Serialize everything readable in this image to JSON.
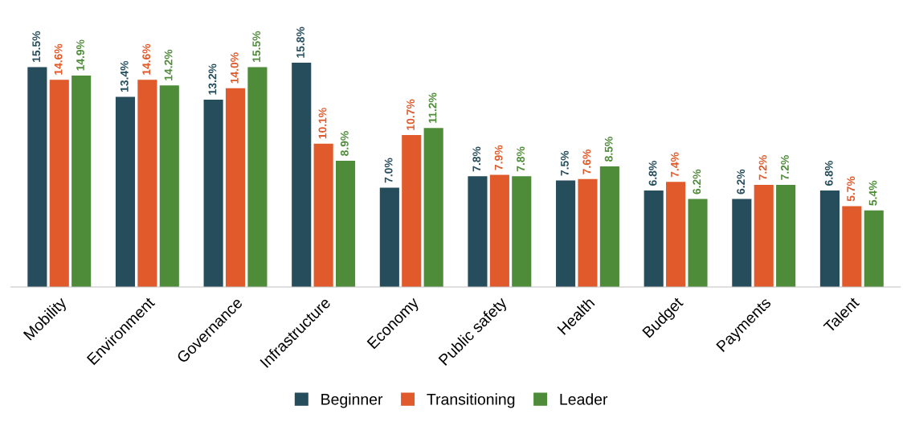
{
  "chart_data": {
    "type": "bar",
    "categories": [
      "Mobility",
      "Environment",
      "Governance",
      "Infrastructure",
      "Economy",
      "Public safety",
      "Health",
      "Budget",
      "Payments",
      "Talent"
    ],
    "series": [
      {
        "name": "Beginner",
        "color": "#264d5c",
        "values": [
          15.5,
          13.4,
          13.2,
          15.8,
          7.0,
          7.8,
          7.5,
          6.8,
          6.2,
          6.8
        ],
        "value_labels": [
          "15.5%",
          "13.4%",
          "13.2%",
          "15.8%",
          "7.0%",
          "7.8%",
          "7.5%",
          "6.8%",
          "6.2%",
          "6.8%"
        ]
      },
      {
        "name": "Transitioning",
        "color": "#e05a2b",
        "values": [
          14.6,
          14.6,
          14.0,
          10.1,
          10.7,
          7.9,
          7.6,
          7.4,
          7.2,
          5.7
        ],
        "value_labels": [
          "14.6%",
          "14.6%",
          "14.0%",
          "10.1%",
          "10.7%",
          "7.9%",
          "7.6%",
          "7.4%",
          "7.2%",
          "5.7%"
        ]
      },
      {
        "name": "Leader",
        "color": "#4e8c3a",
        "values": [
          14.9,
          14.2,
          15.5,
          8.9,
          11.2,
          7.8,
          8.5,
          6.2,
          7.2,
          5.4
        ],
        "value_labels": [
          "14.9%",
          "14.2%",
          "15.5%",
          "8.9%",
          "11.2%",
          "7.8%",
          "8.5%",
          "6.2%",
          "7.2%",
          "5.4%"
        ]
      }
    ],
    "legend": "bottom",
    "grid": false
  }
}
